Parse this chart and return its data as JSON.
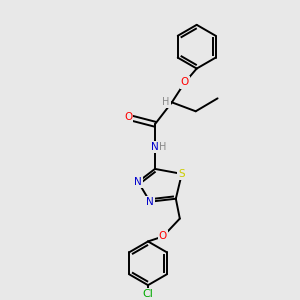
{
  "bg": "#e8e8e8",
  "atom_colors": {
    "C": "#000000",
    "H": "#888888",
    "O": "#ff0000",
    "N": "#0000cc",
    "S": "#cccc00",
    "Cl": "#00aa00"
  },
  "lw": 1.4,
  "fs": 7.5
}
